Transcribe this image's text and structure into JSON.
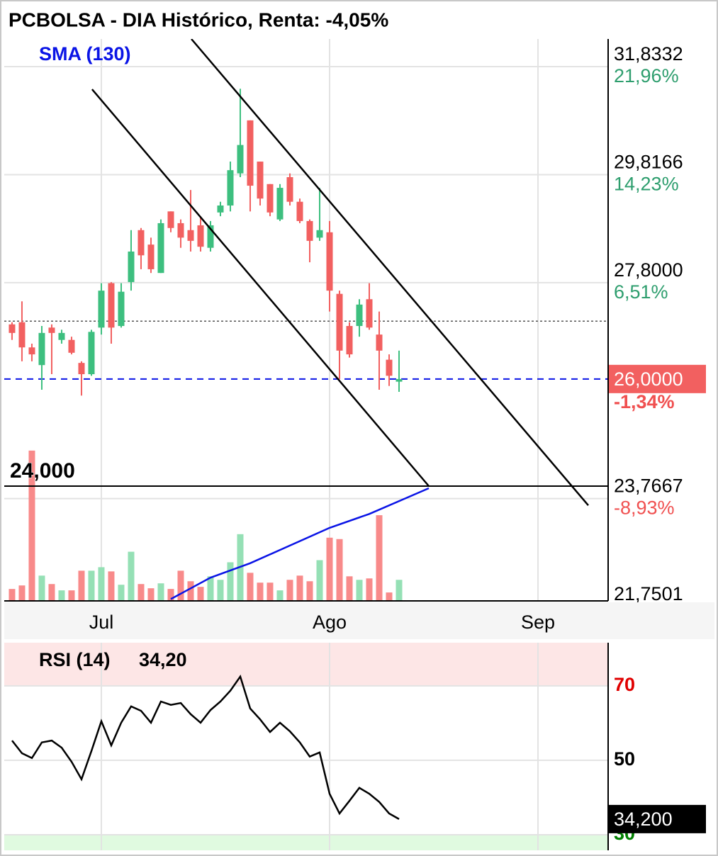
{
  "chart_data": [
    {
      "type": "candlestick",
      "title": "PCBOLSA - DIA Histórico, Renta: -4,05%",
      "categories": [
        null,
        null,
        null,
        null,
        null,
        null,
        null,
        null,
        null,
        null,
        null,
        null,
        null,
        null,
        null,
        null,
        null,
        null,
        null,
        null,
        null,
        null,
        null,
        null,
        null,
        null,
        null,
        null,
        null,
        null,
        null,
        null,
        null,
        null,
        null,
        null,
        null,
        null,
        null,
        null
      ],
      "xlim": [
        -0.64,
        60.07
      ],
      "xticks": [
        {
          "value": 9,
          "label": "Jul"
        },
        {
          "value": 32,
          "label": "Ago"
        },
        {
          "value": 53,
          "label": "Sep"
        }
      ],
      "ylim": [
        21.7501,
        32.35
      ],
      "yticks": [
        {
          "value": 31.8332,
          "label": "31,8332",
          "return": {
            "value": 21.96,
            "label": "21,96%"
          }
        },
        {
          "value": 29.8166,
          "label": "29,8166",
          "return": {
            "value": 14.23,
            "label": "14,23%"
          }
        },
        {
          "value": 27.8,
          "label": "27,8000",
          "return": {
            "value": 6.51,
            "label": "6,51%"
          }
        },
        {
          "value": 23.7667,
          "label": "23,7667",
          "return": {
            "value": -8.93,
            "label": "-8,93%"
          }
        },
        {
          "value": 21.7501,
          "label": "21,7501"
        }
      ],
      "grid": true,
      "up_color": "#3dbf7f",
      "down_color": "#f26060",
      "volume_up_color": "#95e0b5",
      "volume_down_color": "#f88a8a",
      "return_up_color": "#2e9e6e",
      "return_down_color": "#f05050",
      "open": [
        27.02,
        27.06,
        26.59,
        26.26,
        26.96,
        26.73,
        26.73,
        26.3,
        26.09,
        26.96,
        27.79,
        26.99,
        27.81,
        28.78,
        28.51,
        27.98,
        29.13,
        28.91,
        28.78,
        28.87,
        28.45,
        29.11,
        29.24,
        29.84,
        30.83,
        30.06,
        29.64,
        28.98,
        29.77,
        29.31,
        28.95,
        28.64,
        28.74,
        27.59,
        26.99,
        26.99,
        27.49,
        26.83,
        26.36,
        25.95
      ],
      "high": [
        27.06,
        27.45,
        26.66,
        26.99,
        27.02,
        26.92,
        26.79,
        26.33,
        26.92,
        27.79,
        27.81,
        27.79,
        28.78,
        28.82,
        28.64,
        28.98,
        29.13,
        28.98,
        29.53,
        29.04,
        28.95,
        29.31,
        30.06,
        31.42,
        30.83,
        30.06,
        29.64,
        29.64,
        29.84,
        29.37,
        28.98,
        29.57,
        28.95,
        27.65,
        27.06,
        27.49,
        27.79,
        27.26,
        26.46,
        26.53
      ],
      "low": [
        26.73,
        26.33,
        26.33,
        25.8,
        26.09,
        26.66,
        26.46,
        25.69,
        26.06,
        26.83,
        26.66,
        26.96,
        27.65,
        28.05,
        27.98,
        27.98,
        28.74,
        28.45,
        28.38,
        28.38,
        28.38,
        29.04,
        29.13,
        29.77,
        29.13,
        29.24,
        29.04,
        28.95,
        29.24,
        28.91,
        28.18,
        28.58,
        27.26,
        26.0,
        26.4,
        26.79,
        26.92,
        25.8,
        25.87,
        25.76
      ],
      "close": [
        26.86,
        26.59,
        26.46,
        26.86,
        26.86,
        26.86,
        26.49,
        26.09,
        26.88,
        27.65,
        26.96,
        27.63,
        28.38,
        28.31,
        28.05,
        28.91,
        28.82,
        28.64,
        28.58,
        28.47,
        28.87,
        29.24,
        29.9,
        30.37,
        29.61,
        29.37,
        29.11,
        29.57,
        29.31,
        28.95,
        28.58,
        28.78,
        27.65,
        26.53,
        26.46,
        27.39,
        26.96,
        26.53,
        26.06,
        26.0
      ],
      "volume": [
        17,
        22,
        214,
        36,
        24,
        15,
        15,
        43,
        43,
        48,
        42,
        23,
        70,
        24,
        18,
        25,
        17,
        43,
        28,
        20,
        35,
        30,
        55,
        95,
        40,
        26,
        26,
        15,
        30,
        36,
        28,
        58,
        90,
        88,
        35,
        30,
        32,
        122,
        12,
        30
      ],
      "volume_lim": [
        0,
        800
      ],
      "sma": {
        "name": "SMA (130)",
        "color": "#0a14e6",
        "x": [
          16,
          20,
          24,
          28,
          32,
          36,
          40,
          42
        ],
        "values": [
          21.89,
          22.29,
          22.56,
          22.89,
          23.22,
          23.48,
          23.8,
          23.96
        ]
      },
      "trendlines": {
        "color": "#000000",
        "lines": [
          {
            "x": [
              18.07,
              58.07
            ],
            "values": [
              32.35,
              23.64
            ]
          },
          {
            "x": [
              8.07,
              42
            ],
            "values": [
              31.41,
              24.0
            ]
          }
        ]
      },
      "level_line": {
        "value": 24,
        "label": "24,000",
        "color": "#000000"
      },
      "prev_close": {
        "value": 27.08,
        "color": "#555555"
      },
      "last_price": {
        "value": 26,
        "label": "26,0000",
        "color": "#0a14e6",
        "box_color": "#f26060",
        "return": {
          "value": -1.34,
          "label": "-1,34%"
        }
      }
    },
    {
      "type": "line",
      "name": "RSI (14)",
      "current": {
        "value": 34.2,
        "label": "34,20"
      },
      "last_label": {
        "value": 34.2,
        "label": "34,200"
      },
      "last_box_color": "#000000",
      "color": "#000000",
      "categories": [
        null,
        null,
        null,
        null,
        null,
        null,
        null,
        null,
        null,
        null,
        null,
        null,
        null,
        null,
        null,
        null,
        null,
        null,
        null,
        null,
        null,
        null,
        null,
        null,
        null,
        null,
        null,
        null,
        null,
        null,
        null,
        null,
        null,
        null,
        null,
        null,
        null,
        null,
        null,
        null
      ],
      "xlim": [
        -0.64,
        60.07
      ],
      "values": [
        55.3,
        51.9,
        50.6,
        54.8,
        55.3,
        53.4,
        49.6,
        44.9,
        52.5,
        60.5,
        54.0,
        60.1,
        64.5,
        63.3,
        60.1,
        65.8,
        64.9,
        65.4,
        62.4,
        60.1,
        63.5,
        65.8,
        68.7,
        72.5,
        63.9,
        61.0,
        57.6,
        60.1,
        57.8,
        54.8,
        51.0,
        52.1,
        41.0,
        35.7,
        39.1,
        42.6,
        41.0,
        38.8,
        35.7,
        34.2
      ],
      "ylim": [
        25.8,
        81.6
      ],
      "yticks": [
        70,
        50,
        30
      ],
      "ytick_colors": [
        "#e00000",
        "#000000",
        "#008000"
      ],
      "grid": true,
      "bands": [
        {
          "from": 70,
          "to": 81.6,
          "color": "#fde6e6"
        },
        {
          "from": 25.8,
          "to": 30,
          "color": "#e0fae0"
        }
      ]
    }
  ]
}
